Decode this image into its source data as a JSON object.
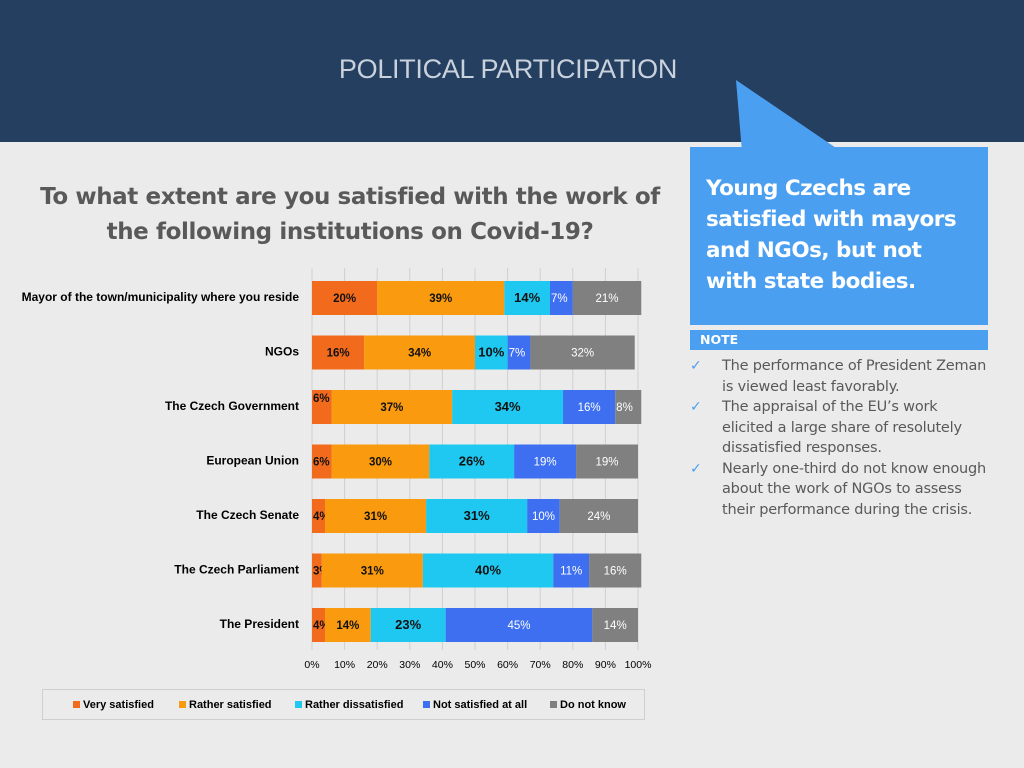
{
  "slide": {
    "title": "POLITICAL PARTICIPATION",
    "question": "To what extent are you satisfied with the work of the following institutions on Covid-19?"
  },
  "callout": {
    "text": "Young Czechs are satisfied with mayors and NGOs, but not with state bodies."
  },
  "note": {
    "label": "NOTE",
    "items": [
      "The performance of President Zeman is viewed least favorably.",
      "The appraisal of the EU’s work elicited a large share of resolutely dissatisfied responses.",
      "Nearly one-third do not know enough about the work of NGOs to assess their performance during the crisis."
    ],
    "check_icon": "check-icon"
  },
  "colors": {
    "header": "#243f60",
    "accent": "#4b9ff0",
    "very_satisfied": "#f26b1d",
    "rather_satisfied": "#f99a0f",
    "rather_dissatisfied": "#1ec8f0",
    "not_satisfied": "#3d6ff0",
    "do_not_know": "#808080"
  },
  "chart_data": {
    "type": "bar",
    "orientation": "horizontal",
    "stacked": true,
    "categories": [
      "Mayor of the town/municipality where you reside",
      "NGOs",
      "The Czech Government",
      "European Union",
      "The Czech Senate",
      "The Czech Parliament",
      "The President"
    ],
    "series": [
      {
        "name": "Very satisfied",
        "color": "#f26b1d",
        "values": [
          20,
          16,
          6,
          6,
          4,
          3,
          4
        ]
      },
      {
        "name": "Rather satisfied",
        "color": "#f99a0f",
        "values": [
          39,
          34,
          37,
          30,
          31,
          31,
          14
        ]
      },
      {
        "name": "Rather dissatisfied",
        "color": "#1ec8f0",
        "values": [
          14,
          10,
          34,
          26,
          31,
          40,
          23
        ]
      },
      {
        "name": "Not satisfied at all",
        "color": "#3d6ff0",
        "values": [
          7,
          7,
          16,
          19,
          10,
          11,
          45
        ]
      },
      {
        "name": "Do not know",
        "color": "#808080",
        "values": [
          21,
          32,
          8,
          19,
          24,
          16,
          14
        ]
      }
    ],
    "xticks": [
      "0%",
      "10%",
      "20%",
      "30%",
      "40%",
      "50%",
      "60%",
      "70%",
      "80%",
      "90%",
      "100%"
    ],
    "xlim": [
      0,
      100
    ],
    "grid": true,
    "legend": "bottom"
  }
}
